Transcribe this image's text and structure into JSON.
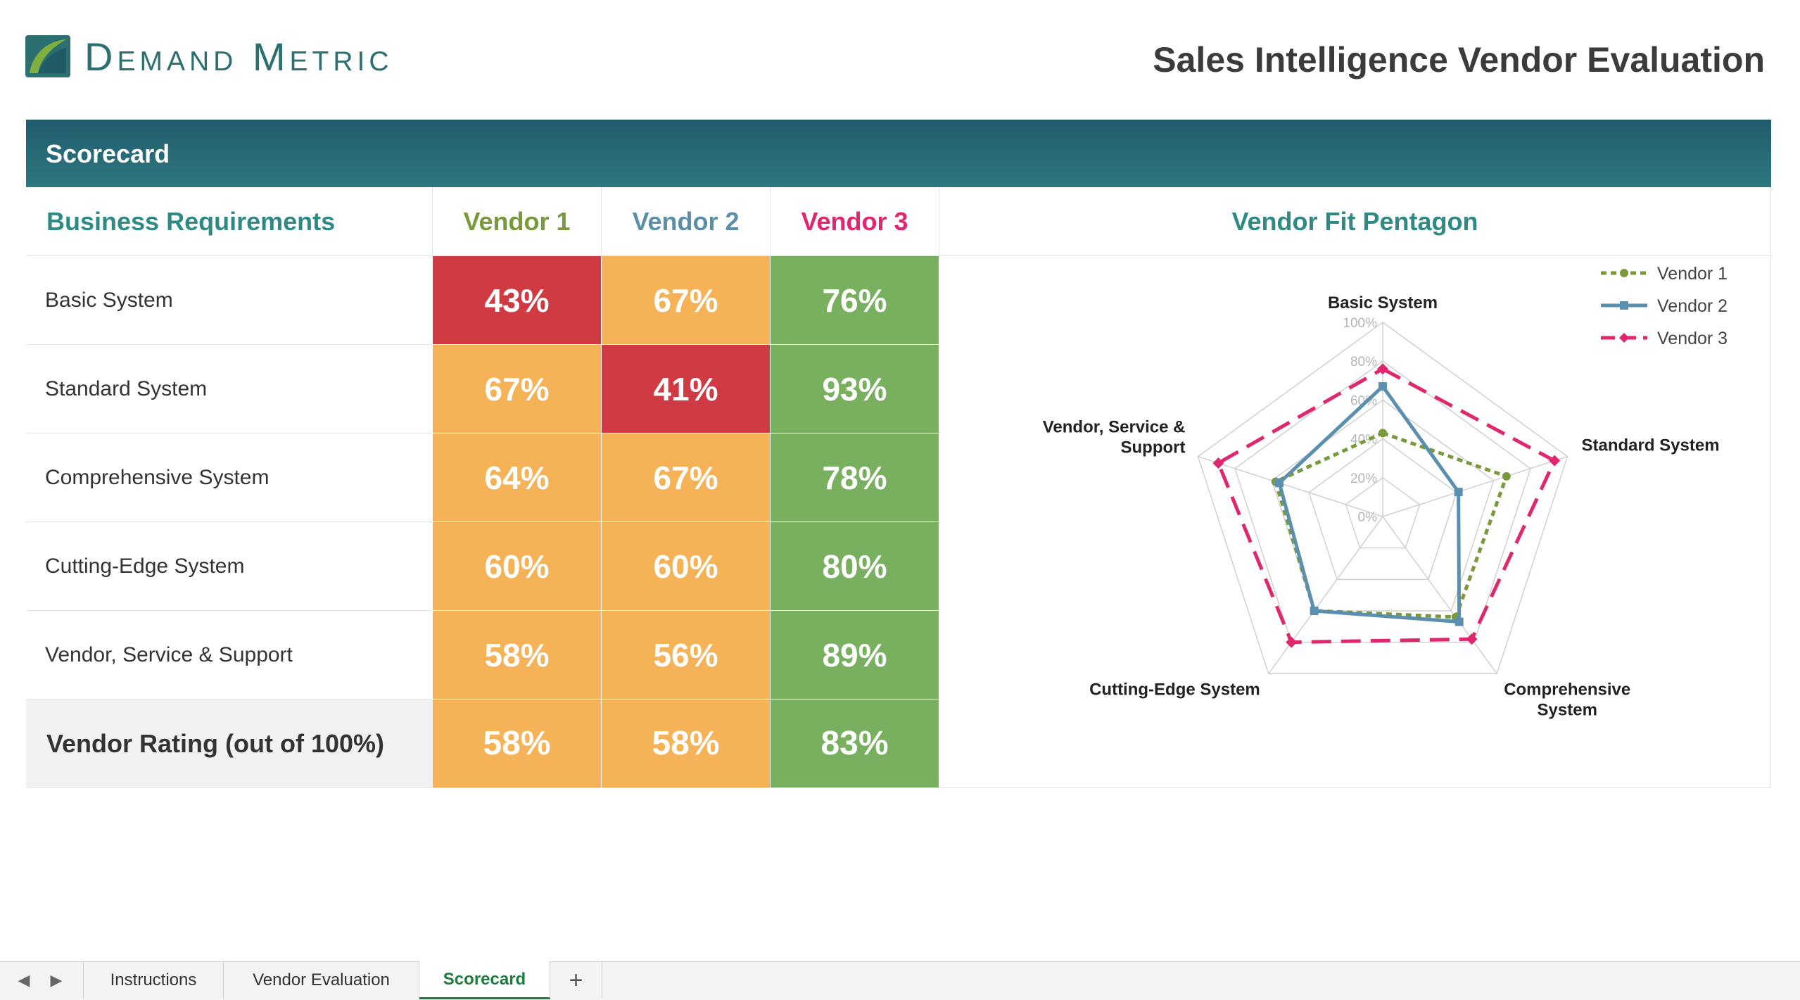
{
  "header": {
    "logo_text": "Demand Metric",
    "title": "Sales Intelligence Vendor Evaluation"
  },
  "banner": {
    "title": "Scorecard"
  },
  "table": {
    "headers": {
      "requirements": "Business Requirements",
      "vendor1": "Vendor 1",
      "vendor2": "Vendor 2",
      "vendor3": "Vendor 3",
      "chart": "Vendor Fit Pentagon"
    },
    "rows": [
      {
        "label": "Basic System",
        "v1": "43%",
        "v2": "67%",
        "v3": "76%",
        "c1": "#cf3a43",
        "c2": "#f5b257",
        "c3": "#78b060"
      },
      {
        "label": "Standard System",
        "v1": "67%",
        "v2": "41%",
        "v3": "93%",
        "c1": "#f5b257",
        "c2": "#cf3a43",
        "c3": "#78b060"
      },
      {
        "label": "Comprehensive System",
        "v1": "64%",
        "v2": "67%",
        "v3": "78%",
        "c1": "#f5b257",
        "c2": "#f5b257",
        "c3": "#78b060"
      },
      {
        "label": "Cutting-Edge System",
        "v1": "60%",
        "v2": "60%",
        "v3": "80%",
        "c1": "#f5b257",
        "c2": "#f5b257",
        "c3": "#78b060"
      },
      {
        "label": "Vendor, Service & Support",
        "v1": "58%",
        "v2": "56%",
        "v3": "89%",
        "c1": "#f5b257",
        "c2": "#f5b257",
        "c3": "#78b060"
      }
    ],
    "total": {
      "label": "Vendor Rating (out of 100%)",
      "v1": "58%",
      "v2": "58%",
      "v3": "83%",
      "c1": "#f5b257",
      "c2": "#f5b257",
      "c3": "#78b060"
    }
  },
  "chart_data": {
    "type": "radar",
    "categories": [
      "Basic System",
      "Standard System",
      "Comprehensive System",
      "Cutting-Edge System",
      "Vendor, Service & Support"
    ],
    "category_labels": [
      [
        "Basic System"
      ],
      [
        "Standard System"
      ],
      [
        "Comprehensive",
        "System"
      ],
      [
        "Cutting-Edge System"
      ],
      [
        "Vendor, Service &",
        "Support"
      ]
    ],
    "ticks": [
      "0%",
      "20%",
      "40%",
      "60%",
      "80%",
      "100%"
    ],
    "range": [
      0,
      100
    ],
    "grid": true,
    "legend_position": "top-right",
    "series": [
      {
        "name": "Vendor 1",
        "values": [
          43,
          67,
          64,
          60,
          58
        ],
        "color": "#789a3b",
        "style": "dotted",
        "marker": "circle"
      },
      {
        "name": "Vendor 2",
        "values": [
          67,
          41,
          67,
          60,
          56
        ],
        "color": "#5b8fb0",
        "style": "solid",
        "marker": "square"
      },
      {
        "name": "Vendor 3",
        "values": [
          76,
          93,
          78,
          80,
          89
        ],
        "color": "#e0266e",
        "style": "dashed",
        "marker": "diamond"
      }
    ]
  },
  "tabs": {
    "items": [
      "Instructions",
      "Vendor Evaluation",
      "Scorecard"
    ],
    "active": "Scorecard",
    "add_label": "+"
  }
}
